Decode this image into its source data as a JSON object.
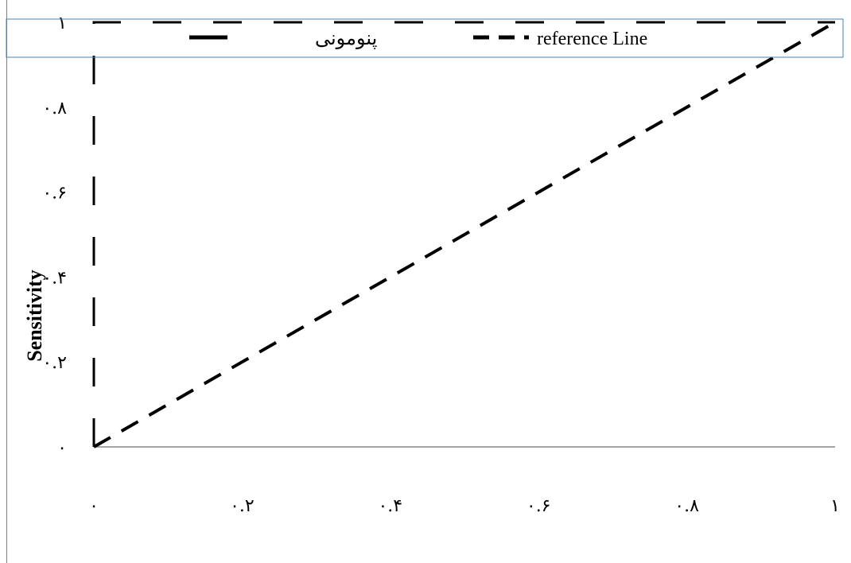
{
  "chart_data": {
    "type": "line",
    "title": "",
    "xlabel": "",
    "ylabel": "Sensitivity",
    "xlim": [
      0,
      1
    ],
    "ylim": [
      0,
      1
    ],
    "x_ticks": [
      {
        "value": 0,
        "label": "۰"
      },
      {
        "value": 0.2,
        "label": "۰.۲"
      },
      {
        "value": 0.4,
        "label": "۰.۴"
      },
      {
        "value": 0.6,
        "label": "۰.۶"
      },
      {
        "value": 0.8,
        "label": "۰.۸"
      },
      {
        "value": 1,
        "label": "۱"
      }
    ],
    "y_ticks": [
      {
        "value": 0,
        "label": "۰"
      },
      {
        "value": 0.2,
        "label": "۰.۲"
      },
      {
        "value": 0.4,
        "label": "۰.۴"
      },
      {
        "value": 0.6,
        "label": "۰.۶"
      },
      {
        "value": 0.8,
        "label": "۰.۸"
      },
      {
        "value": 1,
        "label": "۱"
      }
    ],
    "grid": false,
    "legend_position": "top",
    "series": [
      {
        "name": "پنومونی",
        "style": "long-dash",
        "color": "#000000",
        "points": [
          [
            0,
            0
          ],
          [
            0,
            1
          ],
          [
            1,
            1
          ]
        ]
      },
      {
        "name": "reference Line",
        "style": "dash",
        "color": "#000000",
        "points": [
          [
            0,
            0
          ],
          [
            1,
            1
          ]
        ]
      }
    ]
  },
  "legend_border_color": "#4a7ebb"
}
